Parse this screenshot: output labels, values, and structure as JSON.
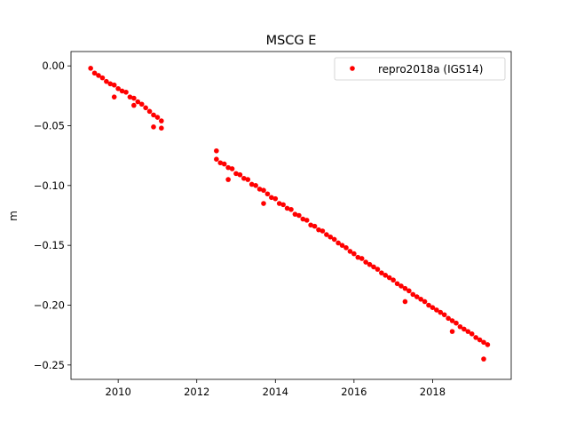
{
  "chart_data": {
    "type": "scatter",
    "title": "MSCG E",
    "xlabel": "",
    "ylabel": "m",
    "xlim": [
      2008.8,
      2020.0
    ],
    "ylim": [
      -0.262,
      0.012
    ],
    "xticks": [
      2010,
      2012,
      2014,
      2016,
      2018
    ],
    "xtick_labels": [
      "2010",
      "2012",
      "2014",
      "2016",
      "2018"
    ],
    "yticks": [
      0.0,
      -0.05,
      -0.1,
      -0.15,
      -0.2,
      -0.25
    ],
    "ytick_labels": [
      "0.00",
      "−0.05",
      "−0.10",
      "−0.15",
      "−0.20",
      "−0.25"
    ],
    "grid": false,
    "legend_position": "top-right",
    "series": [
      {
        "name": "repro2018a (IGS14)",
        "color": "#ff0000",
        "marker": "circle",
        "points": [
          [
            2009.3,
            -0.002
          ],
          [
            2009.4,
            -0.006
          ],
          [
            2009.5,
            -0.008
          ],
          [
            2009.6,
            -0.01
          ],
          [
            2009.7,
            -0.013
          ],
          [
            2009.8,
            -0.015
          ],
          [
            2009.9,
            -0.016
          ],
          [
            2009.9,
            -0.026
          ],
          [
            2010.0,
            -0.019
          ],
          [
            2010.1,
            -0.021
          ],
          [
            2010.2,
            -0.022
          ],
          [
            2010.3,
            -0.026
          ],
          [
            2010.4,
            -0.027
          ],
          [
            2010.4,
            -0.033
          ],
          [
            2010.5,
            -0.03
          ],
          [
            2010.6,
            -0.032
          ],
          [
            2010.7,
            -0.035
          ],
          [
            2010.8,
            -0.038
          ],
          [
            2010.9,
            -0.041
          ],
          [
            2010.9,
            -0.051
          ],
          [
            2011.0,
            -0.043
          ],
          [
            2011.1,
            -0.046
          ],
          [
            2011.1,
            -0.052
          ],
          [
            2012.5,
            -0.078
          ],
          [
            2012.5,
            -0.071
          ],
          [
            2012.6,
            -0.081
          ],
          [
            2012.7,
            -0.082
          ],
          [
            2012.8,
            -0.085
          ],
          [
            2012.8,
            -0.095
          ],
          [
            2012.9,
            -0.086
          ],
          [
            2013.0,
            -0.09
          ],
          [
            2013.1,
            -0.091
          ],
          [
            2013.2,
            -0.094
          ],
          [
            2013.3,
            -0.095
          ],
          [
            2013.4,
            -0.099
          ],
          [
            2013.5,
            -0.1
          ],
          [
            2013.6,
            -0.103
          ],
          [
            2013.7,
            -0.104
          ],
          [
            2013.7,
            -0.115
          ],
          [
            2013.8,
            -0.107
          ],
          [
            2013.9,
            -0.11
          ],
          [
            2014.0,
            -0.111
          ],
          [
            2014.1,
            -0.115
          ],
          [
            2014.2,
            -0.116
          ],
          [
            2014.3,
            -0.119
          ],
          [
            2014.4,
            -0.12
          ],
          [
            2014.5,
            -0.124
          ],
          [
            2014.6,
            -0.125
          ],
          [
            2014.7,
            -0.128
          ],
          [
            2014.8,
            -0.129
          ],
          [
            2014.9,
            -0.133
          ],
          [
            2015.0,
            -0.134
          ],
          [
            2015.1,
            -0.137
          ],
          [
            2015.2,
            -0.138
          ],
          [
            2015.3,
            -0.141
          ],
          [
            2015.4,
            -0.143
          ],
          [
            2015.5,
            -0.145
          ],
          [
            2015.6,
            -0.148
          ],
          [
            2015.7,
            -0.15
          ],
          [
            2015.8,
            -0.152
          ],
          [
            2015.9,
            -0.155
          ],
          [
            2016.0,
            -0.157
          ],
          [
            2016.1,
            -0.16
          ],
          [
            2016.2,
            -0.161
          ],
          [
            2016.3,
            -0.164
          ],
          [
            2016.4,
            -0.166
          ],
          [
            2016.5,
            -0.168
          ],
          [
            2016.6,
            -0.17
          ],
          [
            2016.7,
            -0.173
          ],
          [
            2016.8,
            -0.175
          ],
          [
            2016.9,
            -0.177
          ],
          [
            2017.0,
            -0.179
          ],
          [
            2017.1,
            -0.182
          ],
          [
            2017.2,
            -0.184
          ],
          [
            2017.3,
            -0.186
          ],
          [
            2017.3,
            -0.197
          ],
          [
            2017.4,
            -0.188
          ],
          [
            2017.5,
            -0.191
          ],
          [
            2017.6,
            -0.193
          ],
          [
            2017.7,
            -0.195
          ],
          [
            2017.8,
            -0.197
          ],
          [
            2017.9,
            -0.2
          ],
          [
            2018.0,
            -0.202
          ],
          [
            2018.1,
            -0.204
          ],
          [
            2018.2,
            -0.206
          ],
          [
            2018.3,
            -0.208
          ],
          [
            2018.4,
            -0.211
          ],
          [
            2018.5,
            -0.213
          ],
          [
            2018.5,
            -0.222
          ],
          [
            2018.6,
            -0.215
          ],
          [
            2018.7,
            -0.218
          ],
          [
            2018.8,
            -0.22
          ],
          [
            2018.9,
            -0.222
          ],
          [
            2019.0,
            -0.224
          ],
          [
            2019.1,
            -0.227
          ],
          [
            2019.2,
            -0.229
          ],
          [
            2019.3,
            -0.231
          ],
          [
            2019.3,
            -0.245
          ],
          [
            2019.4,
            -0.233
          ]
        ]
      }
    ]
  }
}
